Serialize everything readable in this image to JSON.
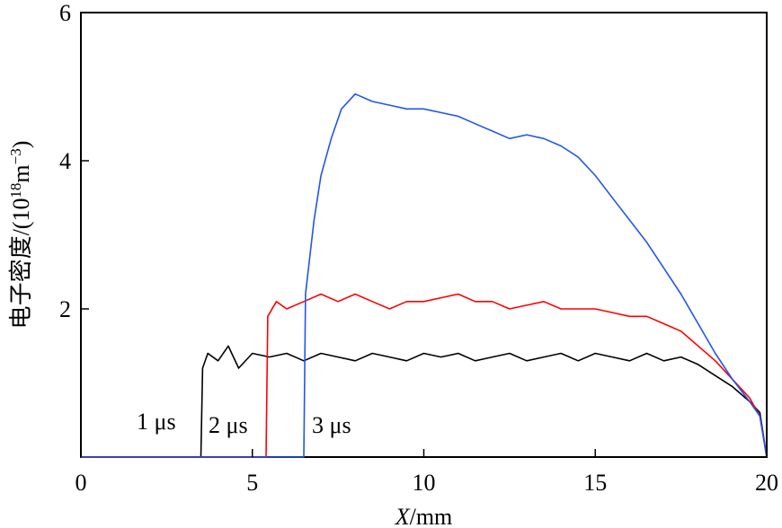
{
  "chart_data": {
    "type": "line",
    "xlabel_italic": "X",
    "xlabel_rest": "/mm",
    "ylabel": "电子密度/(10",
    "ylabel_sup1": "18",
    "ylabel_mid": "m",
    "ylabel_sup2": "−3",
    "ylabel_end": ")",
    "xlim": [
      0,
      20
    ],
    "ylim": [
      0,
      6
    ],
    "xticks": [
      0,
      5,
      10,
      15,
      20
    ],
    "yticks": [
      2,
      4,
      6
    ],
    "xtick_labels": [
      "0",
      "5",
      "10",
      "15",
      "20"
    ],
    "ytick_labels": [
      "2",
      "4",
      "6"
    ],
    "grid": false,
    "series": [
      {
        "label": "1 μs",
        "color": "#000000",
        "x": [
          0,
          3.5,
          3.55,
          3.7,
          4.0,
          4.3,
          4.6,
          5.0,
          5.5,
          6.0,
          6.5,
          7.0,
          7.5,
          8.0,
          8.5,
          9.0,
          9.5,
          10.0,
          10.5,
          11.0,
          11.5,
          12.0,
          12.5,
          13.0,
          13.5,
          14.0,
          14.5,
          15.0,
          15.5,
          16.0,
          16.5,
          17.0,
          17.5,
          18.0,
          18.5,
          19.0,
          19.5,
          19.8,
          20.0
        ],
        "y": [
          0,
          0,
          1.2,
          1.4,
          1.3,
          1.5,
          1.2,
          1.4,
          1.35,
          1.4,
          1.3,
          1.4,
          1.35,
          1.3,
          1.4,
          1.35,
          1.3,
          1.4,
          1.35,
          1.4,
          1.3,
          1.35,
          1.4,
          1.3,
          1.35,
          1.4,
          1.3,
          1.4,
          1.35,
          1.3,
          1.4,
          1.3,
          1.35,
          1.25,
          1.1,
          0.95,
          0.75,
          0.6,
          0.0
        ]
      },
      {
        "label": "2 μs",
        "color": "#ff0000",
        "x": [
          0,
          5.4,
          5.45,
          5.7,
          6.0,
          6.5,
          7.0,
          7.5,
          8.0,
          8.5,
          9.0,
          9.5,
          10.0,
          10.5,
          11.0,
          11.5,
          12.0,
          12.5,
          13.0,
          13.5,
          14.0,
          14.5,
          15.0,
          15.5,
          16.0,
          16.5,
          17.0,
          17.5,
          18.0,
          18.5,
          19.0,
          19.5,
          19.8,
          20.0
        ],
        "y": [
          0,
          0,
          1.9,
          2.1,
          2.0,
          2.1,
          2.2,
          2.1,
          2.2,
          2.1,
          2.0,
          2.1,
          2.1,
          2.15,
          2.2,
          2.1,
          2.1,
          2.0,
          2.05,
          2.1,
          2.0,
          2.0,
          2.0,
          1.95,
          1.9,
          1.9,
          1.8,
          1.7,
          1.5,
          1.3,
          1.05,
          0.8,
          0.55,
          0.0
        ]
      },
      {
        "label": "3 μs",
        "color": "#2255ee",
        "x": [
          0,
          6.5,
          6.55,
          6.8,
          7.0,
          7.3,
          7.6,
          8.0,
          8.5,
          9.0,
          9.5,
          10.0,
          10.5,
          11.0,
          11.5,
          12.0,
          12.5,
          13.0,
          13.5,
          14.0,
          14.5,
          15.0,
          15.5,
          16.0,
          16.5,
          17.0,
          17.5,
          18.0,
          18.5,
          19.0,
          19.5,
          19.8,
          20.0
        ],
        "y": [
          0,
          0,
          2.2,
          3.2,
          3.8,
          4.3,
          4.7,
          4.9,
          4.8,
          4.75,
          4.7,
          4.7,
          4.65,
          4.6,
          4.5,
          4.4,
          4.3,
          4.35,
          4.3,
          4.2,
          4.05,
          3.8,
          3.5,
          3.2,
          2.9,
          2.55,
          2.2,
          1.8,
          1.4,
          1.05,
          0.75,
          0.55,
          0.0
        ]
      }
    ]
  }
}
